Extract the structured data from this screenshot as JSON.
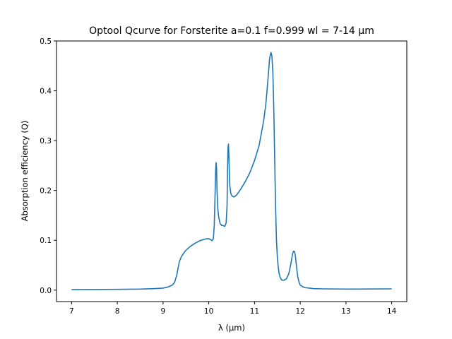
{
  "chart_data": {
    "type": "line",
    "title": "Optool Qcurve for Forsterite a=0.1 f=0.999 wl = 7-14 μm",
    "xlabel": "λ (μm)",
    "ylabel": "Absorption efficiency (Q)",
    "xlim": [
      6.67,
      14.33
    ],
    "ylim": [
      -0.023,
      0.5
    ],
    "xticks": [
      7,
      8,
      9,
      10,
      11,
      12,
      13,
      14
    ],
    "yticks": [
      0.0,
      0.1,
      0.2,
      0.3,
      0.4,
      0.5
    ],
    "xtick_labels": [
      "7",
      "8",
      "9",
      "10",
      "11",
      "12",
      "13",
      "14"
    ],
    "ytick_labels": [
      "0.0",
      "0.1",
      "0.2",
      "0.3",
      "0.4",
      "0.5"
    ],
    "grid": false,
    "series": [
      {
        "color": "#1f77b4",
        "x": [
          7.0,
          7.5,
          8.0,
          8.5,
          8.8,
          9.0,
          9.1,
          9.2,
          9.25,
          9.3,
          9.33,
          9.36,
          9.4,
          9.45,
          9.5,
          9.6,
          9.7,
          9.8,
          9.9,
          9.95,
          10.0,
          10.05,
          10.07,
          10.1,
          10.12,
          10.14,
          10.15,
          10.16,
          10.17,
          10.18,
          10.2,
          10.22,
          10.25,
          10.28,
          10.3,
          10.35,
          10.38,
          10.4,
          10.41,
          10.42,
          10.43,
          10.44,
          10.45,
          10.46,
          10.48,
          10.5,
          10.52,
          10.55,
          10.6,
          10.65,
          10.7,
          10.8,
          10.9,
          11.0,
          11.1,
          11.2,
          11.25,
          11.3,
          11.33,
          11.36,
          11.38,
          11.4,
          11.42,
          11.44,
          11.46,
          11.48,
          11.5,
          11.52,
          11.54,
          11.56,
          11.58,
          11.6,
          11.65,
          11.7,
          11.75,
          11.8,
          11.83,
          11.85,
          11.87,
          11.89,
          11.91,
          11.93,
          11.95,
          11.98,
          12.0,
          12.05,
          12.1,
          12.2,
          12.3,
          12.5,
          13.0,
          13.5,
          14.0
        ],
        "y": [
          0.001,
          0.0012,
          0.0015,
          0.002,
          0.003,
          0.004,
          0.006,
          0.01,
          0.015,
          0.03,
          0.045,
          0.058,
          0.067,
          0.074,
          0.08,
          0.088,
          0.094,
          0.099,
          0.102,
          0.103,
          0.103,
          0.101,
          0.099,
          0.103,
          0.13,
          0.2,
          0.24,
          0.256,
          0.245,
          0.2,
          0.16,
          0.145,
          0.133,
          0.13,
          0.13,
          0.128,
          0.135,
          0.17,
          0.24,
          0.285,
          0.293,
          0.27,
          0.235,
          0.21,
          0.195,
          0.19,
          0.188,
          0.187,
          0.19,
          0.196,
          0.203,
          0.218,
          0.236,
          0.26,
          0.29,
          0.34,
          0.375,
          0.43,
          0.465,
          0.477,
          0.47,
          0.44,
          0.37,
          0.27,
          0.17,
          0.1,
          0.065,
          0.045,
          0.033,
          0.026,
          0.022,
          0.02,
          0.02,
          0.023,
          0.033,
          0.055,
          0.072,
          0.078,
          0.078,
          0.071,
          0.055,
          0.038,
          0.025,
          0.014,
          0.01,
          0.007,
          0.005,
          0.004,
          0.003,
          0.0025,
          0.002,
          0.0022,
          0.0025
        ]
      }
    ]
  }
}
